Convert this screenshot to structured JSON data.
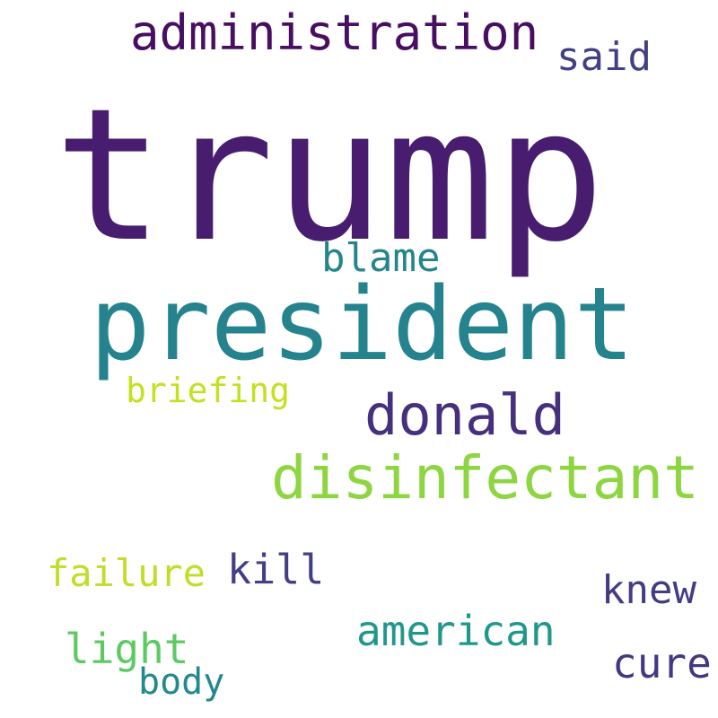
{
  "words": {
    "trump": {
      "text": "trump",
      "color": "#481d6f"
    },
    "president": {
      "text": "president",
      "color": "#25838e"
    },
    "administration": {
      "text": "administration",
      "color": "#470e61"
    },
    "said": {
      "text": "said",
      "color": "#423f85"
    },
    "blame": {
      "text": "blame",
      "color": "#24858d"
    },
    "briefing": {
      "text": "briefing",
      "color": "#c5e021"
    },
    "donald": {
      "text": "donald",
      "color": "#46307e"
    },
    "disinfectant": {
      "text": "disinfectant",
      "color": "#8ed542"
    },
    "failure": {
      "text": "failure",
      "color": "#bddf26"
    },
    "kill": {
      "text": "kill",
      "color": "#433e85"
    },
    "knew": {
      "text": "knew",
      "color": "#433c84"
    },
    "american": {
      "text": "american",
      "color": "#1f978b"
    },
    "light": {
      "text": "light",
      "color": "#5ec962"
    },
    "cure": {
      "text": "cure",
      "color": "#453882"
    },
    "body": {
      "text": "body",
      "color": "#23898e"
    }
  }
}
